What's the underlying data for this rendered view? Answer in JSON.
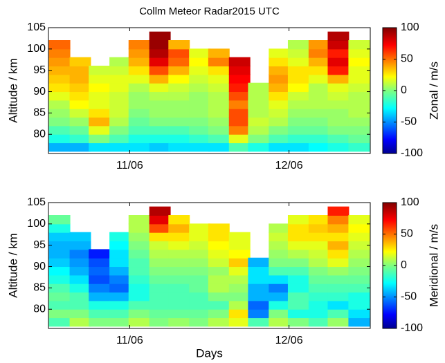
{
  "chart_data": [
    {
      "type": "heatmap",
      "title": "Collm Meteor Radar2015 UTC",
      "ylabel": "Altitude / km",
      "colorbar_label": "Zonal / m/s",
      "colormap": "jet",
      "x": [
        10.56,
        10.69,
        10.81,
        10.94,
        11.06,
        11.19,
        11.31,
        11.44,
        11.56,
        11.69,
        11.81,
        11.94,
        12.06,
        12.19,
        12.31,
        12.44
      ],
      "y": [
        77,
        79,
        81,
        83,
        85,
        87,
        89,
        91,
        93,
        95,
        97,
        99,
        101,
        103
      ],
      "values": [
        [
          -40,
          -20,
          -10,
          0,
          5,
          10,
          20,
          30,
          35,
          40,
          45,
          50,
          55,
          null
        ],
        [
          -40,
          -15,
          -5,
          5,
          15,
          25,
          30,
          35,
          40,
          40,
          35,
          null,
          null,
          null
        ],
        [
          -30,
          0,
          20,
          40,
          30,
          20,
          20,
          25,
          20,
          15,
          null,
          null,
          null,
          null
        ],
        [
          -30,
          -10,
          0,
          10,
          15,
          15,
          15,
          20,
          20,
          15,
          10,
          null,
          null,
          null
        ],
        [
          -30,
          -20,
          -10,
          -5,
          0,
          5,
          5,
          10,
          20,
          30,
          40,
          45,
          50,
          null
        ],
        [
          -35,
          -20,
          -10,
          0,
          5,
          5,
          10,
          20,
          40,
          60,
          80,
          90,
          95,
          95
        ],
        [
          -30,
          -20,
          -10,
          0,
          5,
          5,
          10,
          15,
          25,
          40,
          55,
          60,
          40,
          null
        ],
        [
          -30,
          -15,
          -5,
          0,
          5,
          5,
          5,
          10,
          15,
          20,
          25,
          20,
          null,
          null
        ],
        [
          -30,
          -10,
          0,
          5,
          10,
          10,
          10,
          15,
          20,
          30,
          50,
          40,
          null,
          null
        ],
        [
          -10,
          20,
          50,
          60,
          60,
          50,
          60,
          70,
          75,
          80,
          85,
          null,
          null,
          null
        ],
        [
          -20,
          0,
          10,
          15,
          10,
          10,
          10,
          10,
          null,
          null,
          null,
          null,
          null,
          null
        ],
        [
          -30,
          -10,
          0,
          10,
          15,
          20,
          30,
          40,
          45,
          40,
          30,
          20,
          null,
          null
        ],
        [
          -30,
          -15,
          -5,
          0,
          5,
          10,
          15,
          25,
          30,
          30,
          20,
          15,
          10,
          null
        ],
        [
          -25,
          -15,
          -5,
          0,
          5,
          10,
          10,
          10,
          20,
          30,
          40,
          50,
          45,
          null
        ],
        [
          -20,
          -10,
          0,
          5,
          5,
          10,
          15,
          20,
          40,
          70,
          80,
          70,
          85,
          90
        ],
        [
          -15,
          -5,
          0,
          5,
          10,
          10,
          10,
          15,
          20,
          20,
          25,
          20,
          15,
          null
        ]
      ],
      "xlim": [
        10.49,
        12.51
      ],
      "xticks": [
        {
          "value": 11,
          "label": "11/06"
        },
        {
          "value": 12,
          "label": "12/06"
        }
      ],
      "ylim": [
        75.5,
        105
      ],
      "yticks": [
        80,
        85,
        90,
        95,
        100,
        105
      ],
      "clim": [
        -100,
        100
      ],
      "cticks": [
        -100,
        -50,
        0,
        50,
        100
      ]
    },
    {
      "type": "heatmap",
      "xlabel": "Days",
      "ylabel": "Altitude / km",
      "colorbar_label": "Meridional / m/s",
      "colormap": "jet",
      "x": [
        10.56,
        10.69,
        10.81,
        10.94,
        11.06,
        11.19,
        11.31,
        11.44,
        11.56,
        11.69,
        11.81,
        11.94,
        12.06,
        12.19,
        12.31,
        12.44
      ],
      "y": [
        77,
        79,
        81,
        83,
        85,
        87,
        89,
        91,
        93,
        95,
        97,
        99,
        101,
        103
      ],
      "values": [
        [
          -10,
          0,
          -10,
          -5,
          -10,
          -20,
          -25,
          -35,
          -40,
          -40,
          -35,
          -20,
          -5,
          null
        ],
        [
          10,
          0,
          -10,
          -10,
          -20,
          -30,
          -40,
          -45,
          -50,
          -40,
          -35,
          null,
          null,
          null
        ],
        [
          0,
          -10,
          -20,
          -40,
          -50,
          -60,
          -55,
          -60,
          -70,
          null,
          null,
          null,
          null,
          null
        ],
        [
          0,
          -10,
          -20,
          -40,
          -55,
          -50,
          -40,
          -30,
          -30,
          -25,
          -20,
          null,
          null,
          null
        ],
        [
          10,
          0,
          -10,
          -20,
          -20,
          -15,
          -10,
          -10,
          -5,
          0,
          5,
          10,
          10,
          null
        ],
        [
          0,
          -5,
          -10,
          -10,
          -10,
          -5,
          0,
          5,
          10,
          15,
          30,
          60,
          80,
          90
        ],
        [
          5,
          -5,
          -10,
          -10,
          -10,
          -5,
          0,
          5,
          10,
          20,
          30,
          40,
          30,
          null
        ],
        [
          0,
          -5,
          -10,
          -10,
          -5,
          -5,
          0,
          5,
          10,
          15,
          20,
          20,
          null,
          null
        ],
        [
          10,
          0,
          -10,
          0,
          10,
          10,
          5,
          15,
          20,
          25,
          30,
          30,
          null,
          null
        ],
        [
          20,
          30,
          10,
          0,
          5,
          10,
          20,
          35,
          25,
          20,
          20,
          null,
          null,
          null
        ],
        [
          -10,
          -50,
          -55,
          -40,
          -40,
          -30,
          -30,
          -40,
          null,
          null,
          null,
          null,
          null,
          null
        ],
        [
          10,
          0,
          -20,
          -40,
          -50,
          -30,
          -10,
          0,
          5,
          10,
          15,
          10,
          null,
          null
        ],
        [
          0,
          -20,
          -10,
          -10,
          -20,
          -20,
          -10,
          0,
          10,
          20,
          30,
          30,
          20,
          null
        ],
        [
          -10,
          -20,
          -20,
          -15,
          -10,
          -5,
          0,
          10,
          15,
          20,
          30,
          35,
          30,
          null
        ],
        [
          5,
          -10,
          -30,
          -15,
          -10,
          -5,
          5,
          20,
          30,
          40,
          30,
          40,
          50,
          70
        ],
        [
          -40,
          -30,
          -20,
          -20,
          -10,
          -5,
          0,
          5,
          10,
          15,
          20,
          25,
          20,
          null
        ]
      ],
      "xlim": [
        10.49,
        12.51
      ],
      "xticks": [
        {
          "value": 11,
          "label": "11/06"
        },
        {
          "value": 12,
          "label": "12/06"
        }
      ],
      "ylim": [
        75.5,
        105
      ],
      "yticks": [
        80,
        85,
        90,
        95,
        100,
        105
      ],
      "clim": [
        -100,
        100
      ],
      "cticks": [
        -100,
        -50,
        0,
        50,
        100
      ]
    }
  ]
}
